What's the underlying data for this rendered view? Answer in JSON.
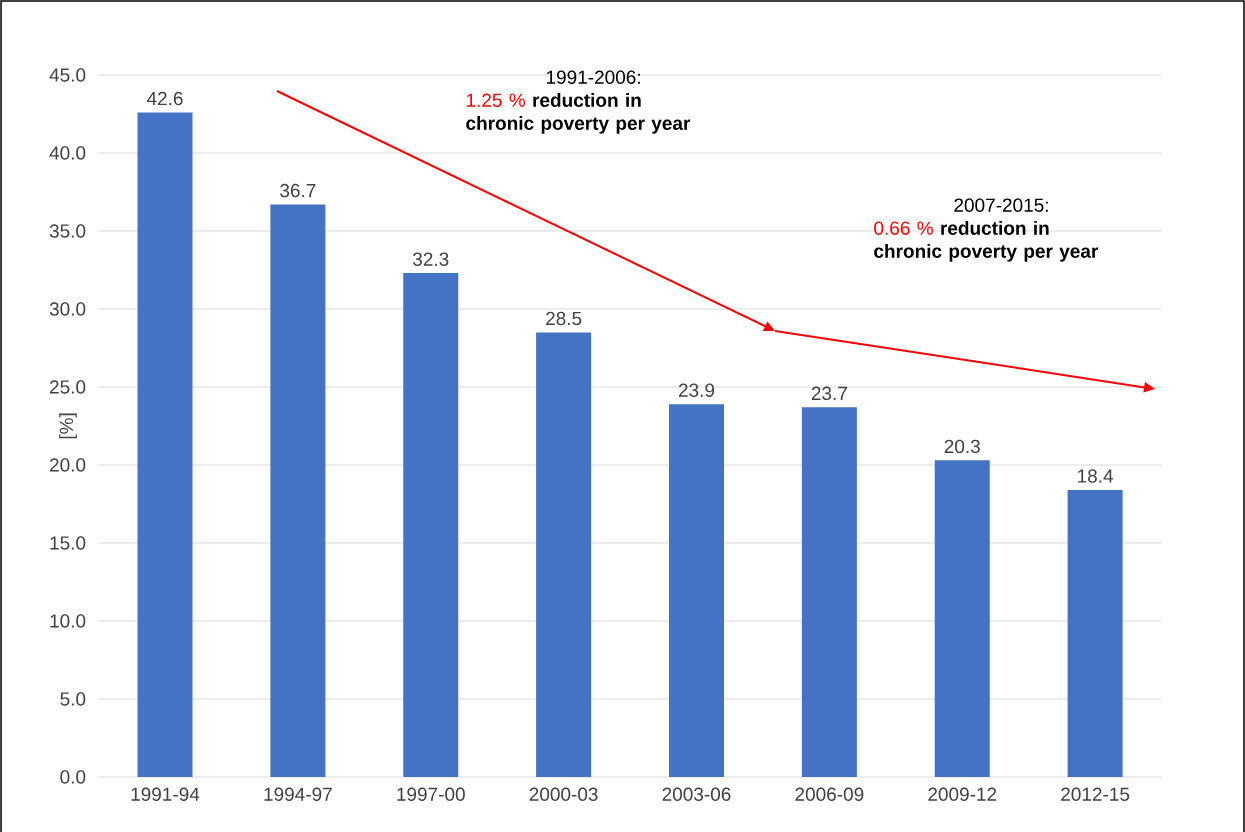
{
  "chart_data": {
    "type": "bar",
    "ylabel": "[%]",
    "categories": [
      "1991-94",
      "1994-97",
      "1997-00",
      "2000-03",
      "2003-06",
      "2006-09",
      "2009-12",
      "2012-15"
    ],
    "values": [
      42.6,
      36.7,
      32.3,
      28.5,
      23.9,
      23.7,
      20.3,
      18.4
    ],
    "color": "#4472c4",
    "ylim": [
      0,
      45
    ],
    "yticks": [
      {
        "value": 0,
        "label": "0.0"
      },
      {
        "value": 5,
        "label": "5.0"
      },
      {
        "value": 10,
        "label": "10.0"
      },
      {
        "value": 15,
        "label": "15.0"
      },
      {
        "value": 20,
        "label": "20.0"
      },
      {
        "value": 25,
        "label": "25.0"
      },
      {
        "value": 30,
        "label": "30.0"
      },
      {
        "value": 35,
        "label": "35.0"
      },
      {
        "value": 40,
        "label": "40.0"
      },
      {
        "value": 45,
        "label": "45.0"
      }
    ],
    "grid": "y",
    "data_labels": true,
    "annotations": [
      "1991-2006:",
      "1.25 %",
      "reduction in chronic poverty per year",
      "2007-2015:",
      "0.66 %",
      "reduction in chronic poverty per year"
    ]
  }
}
